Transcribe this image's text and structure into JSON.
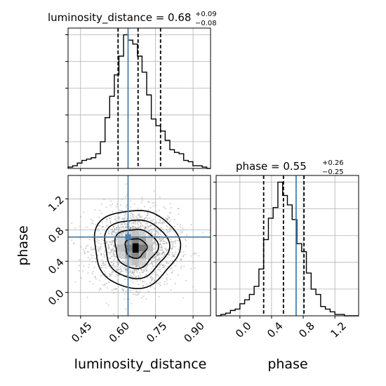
{
  "chart_data": {
    "type": "corner",
    "parameters": [
      "luminosity_distance",
      "phase"
    ],
    "axis_labels": {
      "x_left": "luminosity_distance",
      "x_right": "phase",
      "y_left": "phase"
    },
    "titles": {
      "luminosity_distance": {
        "main": "luminosity_distance = 0.68",
        "sup": "+0.09",
        "sub": "−0.08"
      },
      "phase": {
        "main": "phase = 0.55",
        "sup": "+0.26",
        "sub": "−0.25"
      }
    },
    "truth": {
      "luminosity_distance": 0.64,
      "phase": 0.71
    },
    "colors": {
      "truth": "#4a7fab",
      "hist": "#000000",
      "grid": "#b0b0b0",
      "points": "#8a8a8a"
    },
    "luminosity_distance_hist": {
      "xlim": [
        0.4,
        0.97
      ],
      "ticks": [
        0.45,
        0.6,
        0.75,
        0.9
      ],
      "tick_labels": [
        "0.45",
        "0.60",
        "0.75",
        "0.90"
      ],
      "quantiles": [
        0.6,
        0.68,
        0.77
      ],
      "bin_edges": [
        0.4,
        0.4185,
        0.437,
        0.4555,
        0.474,
        0.4925,
        0.511,
        0.5295,
        0.548,
        0.5665,
        0.585,
        0.6035,
        0.622,
        0.6405,
        0.659,
        0.6775,
        0.696,
        0.7145,
        0.733,
        0.7515,
        0.77,
        0.7885,
        0.807,
        0.8255,
        0.844,
        0.8625,
        0.881,
        0.8995,
        0.918,
        0.9365,
        0.955,
        0.97
      ],
      "counts": [
        1,
        2,
        4,
        6,
        7,
        8,
        11,
        20,
        38,
        54,
        70,
        84,
        100,
        96,
        93,
        84,
        72,
        55,
        37,
        32,
        28,
        21,
        14,
        12,
        11,
        6,
        5,
        2,
        2,
        1,
        0
      ]
    },
    "phase_hist": {
      "xlim": [
        -0.3,
        1.5
      ],
      "ticks": [
        0.0,
        0.4,
        0.8,
        1.2
      ],
      "tick_labels": [
        "0.0",
        "0.4",
        "0.8",
        "1.2"
      ],
      "quantiles": [
        0.3,
        0.55,
        0.81
      ],
      "bin_edges": [
        -0.3,
        -0.24,
        -0.18,
        -0.12,
        -0.06,
        0.0,
        0.06,
        0.12,
        0.18,
        0.24,
        0.3,
        0.36,
        0.42,
        0.48,
        0.54,
        0.6,
        0.66,
        0.72,
        0.78,
        0.84,
        0.9,
        0.96,
        1.02,
        1.08,
        1.14,
        1.2,
        1.26,
        1.32,
        1.38,
        1.44,
        1.5
      ],
      "counts": [
        0,
        1,
        2,
        4,
        5,
        9,
        12,
        16,
        22,
        35,
        57,
        73,
        81,
        100,
        90,
        83,
        72,
        54,
        48,
        32,
        20,
        16,
        7,
        5,
        3,
        1,
        1,
        0,
        0,
        0
      ]
    },
    "joint": {
      "xlim": [
        0.4,
        0.97
      ],
      "ylim": [
        -0.3,
        1.5
      ],
      "y_ticks": [
        0.0,
        0.4,
        0.8,
        1.2
      ],
      "y_tick_labels": [
        "0.0",
        "0.4",
        "0.8",
        "1.2"
      ],
      "center": [
        0.67,
        0.57
      ],
      "spread": [
        0.085,
        0.25
      ]
    },
    "grid": true
  }
}
